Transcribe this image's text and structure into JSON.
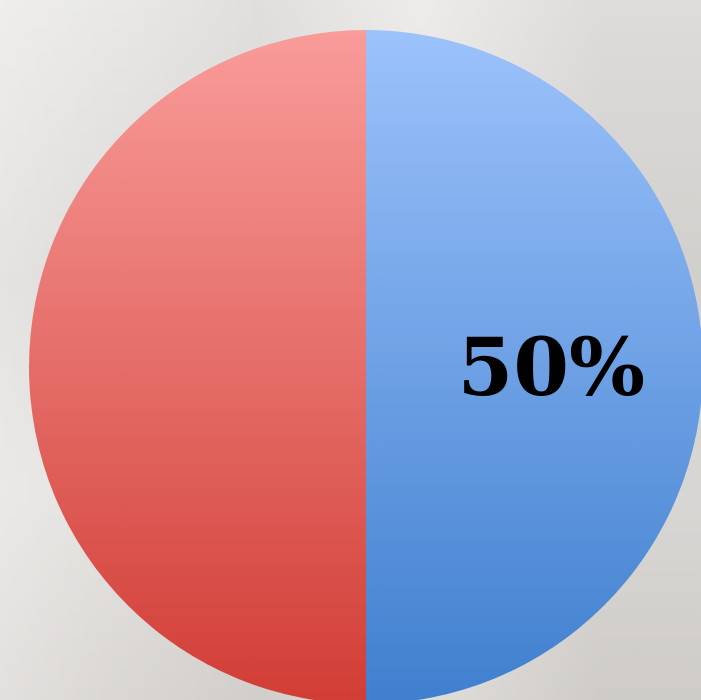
{
  "chart_data": {
    "type": "pie",
    "title": "",
    "slices": [
      {
        "value": 50,
        "label": "50%",
        "color_top": "#9cc2fb",
        "color_bottom": "#3f7fce"
      },
      {
        "value": 50,
        "label": "",
        "color_top": "#f99c9a",
        "color_bottom": "#d13d35"
      }
    ],
    "legend": "none"
  }
}
